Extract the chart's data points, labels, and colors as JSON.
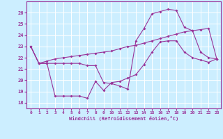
{
  "xlabel": "Windchill (Refroidissement éolien,°C)",
  "bg_color": "#cceeff",
  "line_color": "#993399",
  "grid_color": "#ffffff",
  "xlim": [
    -0.5,
    23.5
  ],
  "ylim": [
    17.5,
    27.0
  ],
  "yticks": [
    18,
    19,
    20,
    21,
    22,
    23,
    24,
    25,
    26
  ],
  "xticks": [
    0,
    1,
    2,
    3,
    4,
    5,
    6,
    7,
    8,
    9,
    10,
    11,
    12,
    13,
    14,
    15,
    16,
    17,
    18,
    19,
    20,
    21,
    22,
    23
  ],
  "series1_x": [
    0,
    1,
    2,
    3,
    4,
    5,
    6,
    7,
    8,
    9,
    10,
    11,
    12,
    13,
    14,
    15,
    16,
    17,
    18,
    19,
    20,
    21,
    22,
    23
  ],
  "series1_y": [
    23.0,
    21.5,
    21.5,
    21.5,
    21.5,
    21.5,
    21.5,
    21.3,
    21.3,
    19.8,
    19.7,
    19.5,
    19.2,
    23.5,
    24.6,
    25.9,
    26.1,
    26.3,
    26.2,
    24.7,
    24.4,
    22.5,
    22.0,
    21.9
  ],
  "series2_x": [
    0,
    1,
    2,
    3,
    4,
    5,
    6,
    7,
    8,
    9,
    10,
    11,
    12,
    13,
    14,
    15,
    16,
    17,
    18,
    19,
    20,
    21,
    22,
    23
  ],
  "series2_y": [
    23.0,
    21.5,
    21.7,
    21.9,
    22.0,
    22.1,
    22.2,
    22.3,
    22.4,
    22.5,
    22.6,
    22.8,
    23.0,
    23.1,
    23.3,
    23.5,
    23.7,
    23.9,
    24.1,
    24.3,
    24.4,
    24.5,
    24.6,
    21.9
  ],
  "series3_x": [
    0,
    1,
    2,
    3,
    4,
    5,
    6,
    7,
    8,
    9,
    10,
    11,
    12,
    13,
    14,
    15,
    16,
    17,
    18,
    19,
    20,
    21,
    22,
    23
  ],
  "series3_y": [
    23.0,
    21.5,
    21.5,
    18.6,
    18.6,
    18.6,
    18.6,
    18.4,
    19.9,
    19.1,
    19.8,
    19.9,
    20.2,
    20.5,
    21.4,
    22.5,
    23.4,
    23.5,
    23.5,
    22.5,
    22.0,
    21.8,
    21.6,
    21.9
  ]
}
